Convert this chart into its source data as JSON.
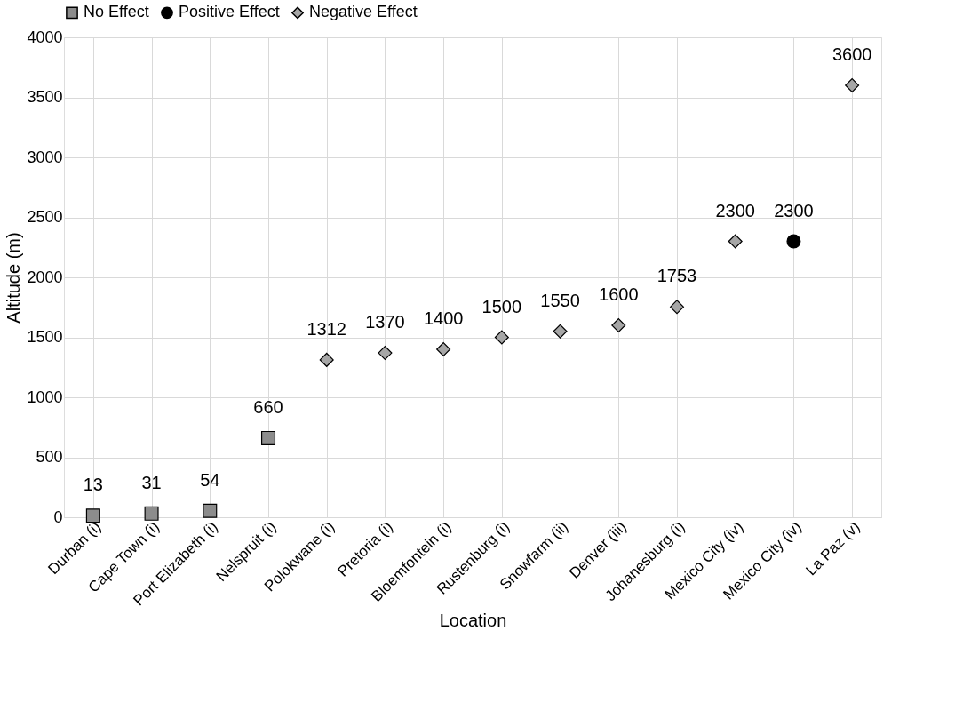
{
  "chart_data": {
    "type": "scatter",
    "xlabel": "Location",
    "ylabel": "Altitude (m)",
    "categories": [
      "Durban (i)",
      "Cape Town (i)",
      "Port Elizabeth (i)",
      "Nelspruit (i)",
      "Polokwane (i)",
      "Pretoria (i)",
      "Bloemfontein (i)",
      "Rustenburg (i)",
      "Snowfarm (ii)",
      "Denver (iii)",
      "Johanesburg (i)",
      "Mexico City (iv)",
      "Mexico City (iv)",
      "La Paz (v)"
    ],
    "series": [
      {
        "name": "No Effect",
        "color": "#8c8c8c",
        "marker": "square",
        "values": [
          13,
          31,
          54,
          660,
          null,
          null,
          null,
          null,
          null,
          null,
          null,
          null,
          null,
          null
        ]
      },
      {
        "name": "Positive Effect",
        "color": "#000000",
        "marker": "circle",
        "values": [
          null,
          null,
          null,
          null,
          null,
          null,
          null,
          null,
          null,
          null,
          null,
          null,
          2300,
          null
        ]
      },
      {
        "name": "Negative Effect",
        "color": "#a6a6a6",
        "marker": "diamond",
        "values": [
          null,
          null,
          null,
          null,
          1312,
          1370,
          1400,
          1500,
          1550,
          1600,
          1753,
          2300,
          null,
          3600
        ]
      }
    ],
    "ylim": [
      0,
      4000
    ],
    "yticks": [
      0,
      500,
      1000,
      1500,
      2000,
      2500,
      3000,
      3500,
      4000
    ],
    "grid": true,
    "legend": "top",
    "data_labels": true
  }
}
